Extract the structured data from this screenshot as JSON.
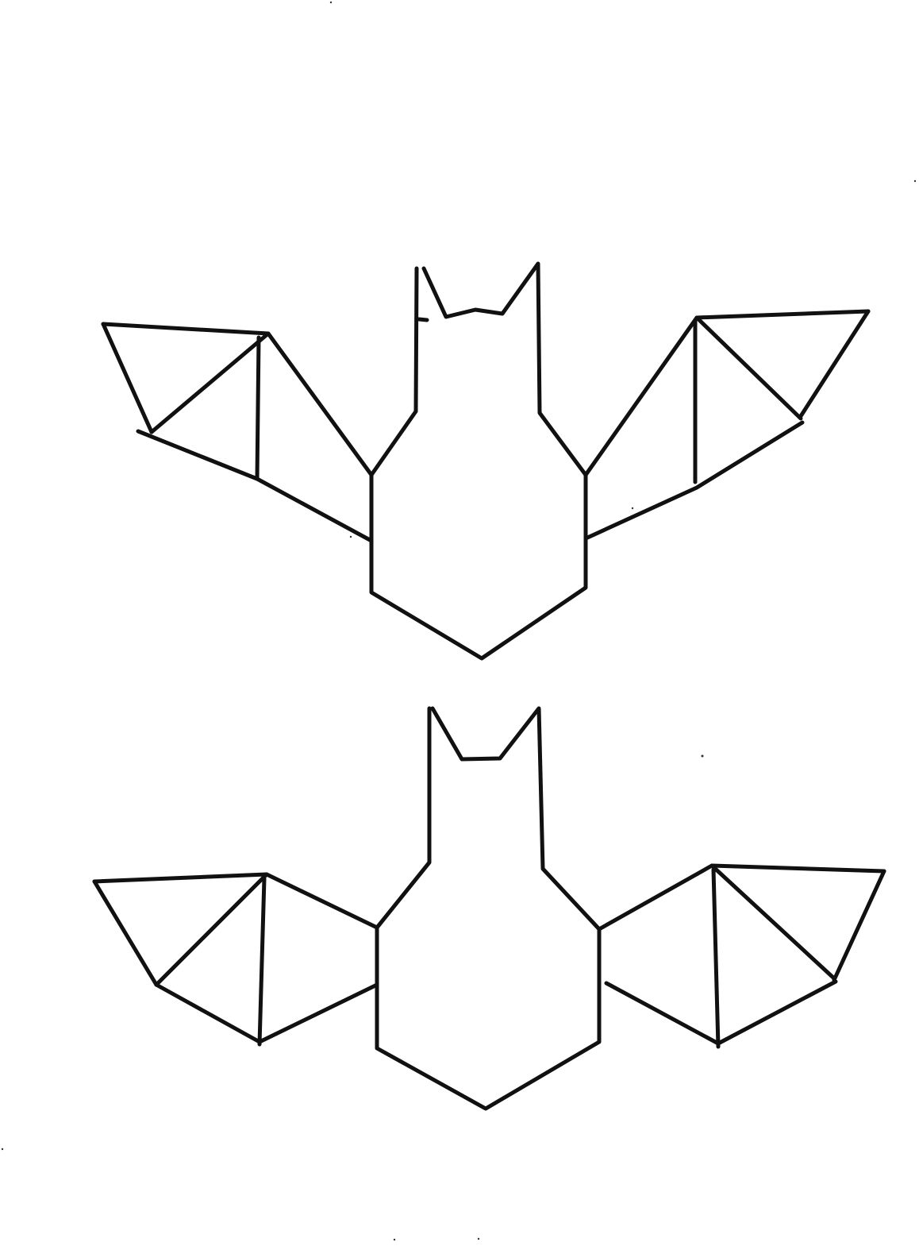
{
  "sheet": {
    "background_color": "#ffffff",
    "ink_color": "#111111"
  },
  "figures": [
    {
      "kind": "bat-template",
      "position_word": "top"
    },
    {
      "kind": "bat-template",
      "position_word": "bottom"
    }
  ]
}
